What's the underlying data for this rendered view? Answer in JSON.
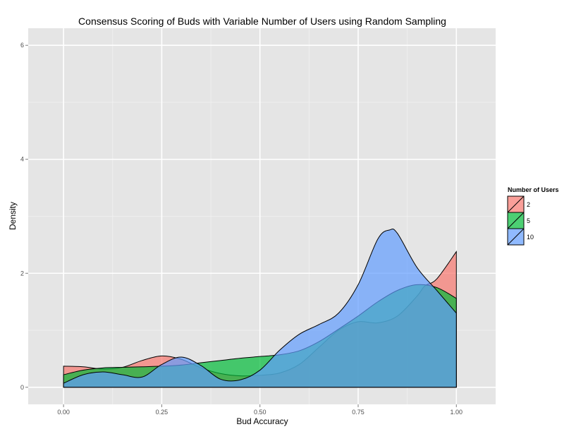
{
  "chart_data": {
    "type": "area",
    "subtype": "density",
    "title": "Consensus Scoring of Buds with Variable Number of Users using Random Sampling",
    "xlabel": "Bud Accuracy",
    "ylabel": "Density",
    "xlim": [
      -0.09,
      1.1
    ],
    "ylim": [
      -0.3,
      6.3
    ],
    "x_ticks": [
      0,
      0.25,
      0.5,
      0.75,
      1.0
    ],
    "x_tick_labels": [
      "0.00",
      "0.25",
      "0.50",
      "0.75",
      "1.00"
    ],
    "y_ticks": [
      0,
      2,
      4,
      6
    ],
    "y_tick_labels": [
      "0",
      "2",
      "4",
      "6"
    ],
    "grid": true,
    "legend": {
      "title": "Number of Users",
      "placement": "right"
    },
    "series": [
      {
        "name": "2",
        "color": "#F8766D",
        "x": [
          0,
          0.05,
          0.1,
          0.15,
          0.2,
          0.25,
          0.3,
          0.35,
          0.4,
          0.45,
          0.5,
          0.55,
          0.6,
          0.65,
          0.7,
          0.75,
          0.8,
          0.85,
          0.9,
          0.92,
          0.95,
          1.0
        ],
        "y": [
          0.37,
          0.36,
          0.32,
          0.35,
          0.47,
          0.55,
          0.49,
          0.34,
          0.24,
          0.2,
          0.21,
          0.25,
          0.4,
          0.7,
          1.0,
          1.15,
          1.13,
          1.25,
          1.6,
          1.78,
          1.9,
          2.38
        ]
      },
      {
        "name": "5",
        "color": "#00BA38",
        "x": [
          0,
          0.05,
          0.1,
          0.15,
          0.2,
          0.25,
          0.3,
          0.35,
          0.4,
          0.45,
          0.5,
          0.55,
          0.6,
          0.65,
          0.7,
          0.75,
          0.8,
          0.85,
          0.9,
          0.95,
          1.0
        ],
        "y": [
          0.22,
          0.3,
          0.34,
          0.35,
          0.36,
          0.37,
          0.39,
          0.43,
          0.47,
          0.51,
          0.54,
          0.57,
          0.64,
          0.8,
          1.02,
          1.25,
          1.5,
          1.7,
          1.8,
          1.75,
          1.56
        ]
      },
      {
        "name": "10",
        "color": "#619CFF",
        "x": [
          0,
          0.05,
          0.1,
          0.15,
          0.2,
          0.25,
          0.3,
          0.35,
          0.4,
          0.45,
          0.5,
          0.55,
          0.6,
          0.65,
          0.7,
          0.75,
          0.8,
          0.83,
          0.85,
          0.9,
          0.95,
          1.0
        ],
        "y": [
          0.07,
          0.22,
          0.27,
          0.22,
          0.18,
          0.4,
          0.53,
          0.38,
          0.14,
          0.13,
          0.3,
          0.65,
          0.93,
          1.1,
          1.3,
          1.8,
          2.6,
          2.76,
          2.7,
          2.1,
          1.7,
          1.3
        ]
      }
    ]
  }
}
